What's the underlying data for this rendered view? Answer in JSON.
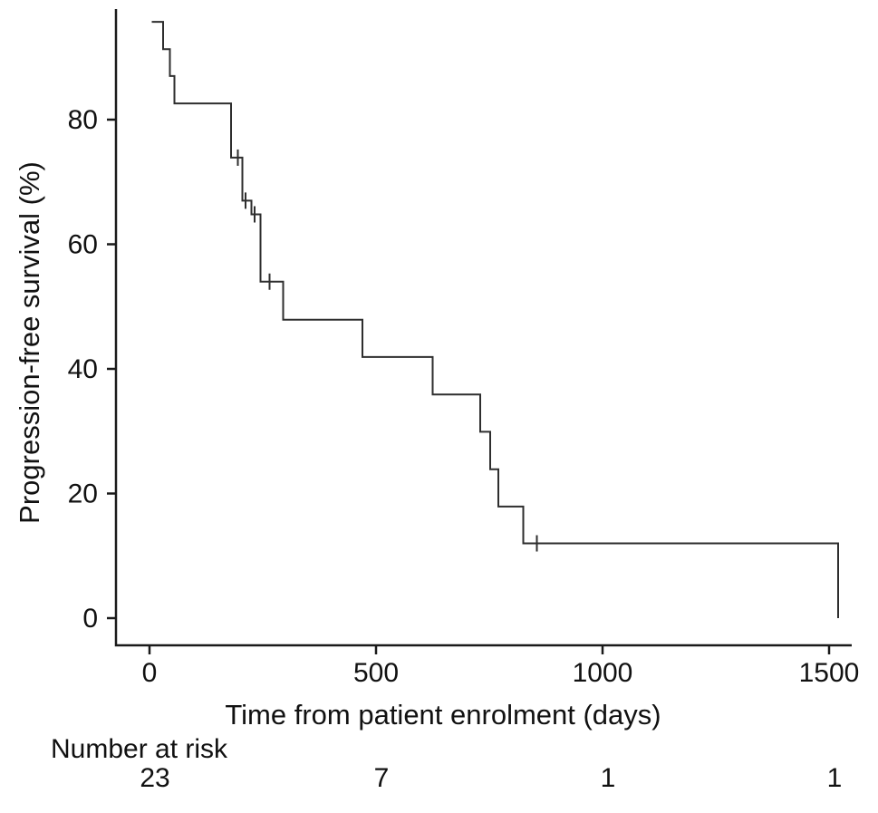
{
  "chart_data": {
    "type": "line",
    "subtype": "kaplan-meier-step-curve",
    "title": "",
    "xlabel": "Time from patient enrolment (days)",
    "ylabel": "Progression-free survival (%)",
    "xlim": [
      0,
      1560
    ],
    "ylim": [
      0,
      100
    ],
    "xticks": [
      0,
      500,
      1000,
      1500
    ],
    "yticks": [
      0,
      20,
      40,
      60,
      80
    ],
    "grid": false,
    "legend": "none",
    "line_color": "#2e2e2e",
    "axis_color": "#1a1a1a",
    "steps": [
      {
        "t": 5,
        "s": 95.7
      },
      {
        "t": 30,
        "s": 91.3
      },
      {
        "t": 45,
        "s": 87.0
      },
      {
        "t": 55,
        "s": 82.6
      },
      {
        "t": 180,
        "s": 73.9
      },
      {
        "t": 205,
        "s": 67.0
      },
      {
        "t": 225,
        "s": 64.8
      },
      {
        "t": 245,
        "s": 54.0
      },
      {
        "t": 295,
        "s": 47.9
      },
      {
        "t": 470,
        "s": 41.9
      },
      {
        "t": 625,
        "s": 35.9
      },
      {
        "t": 730,
        "s": 29.9
      },
      {
        "t": 752,
        "s": 23.9
      },
      {
        "t": 770,
        "s": 17.9
      },
      {
        "t": 825,
        "s": 12.0
      },
      {
        "t": 1520,
        "s": 0
      }
    ],
    "censor_marks": [
      {
        "t": 195,
        "s": 73.9
      },
      {
        "t": 212,
        "s": 67.0
      },
      {
        "t": 232,
        "s": 64.8
      },
      {
        "t": 265,
        "s": 54.0
      },
      {
        "t": 855,
        "s": 12.0
      }
    ],
    "number_at_risk": {
      "label": "Number at risk",
      "times": [
        0,
        500,
        1000,
        1500
      ],
      "values": [
        23,
        7,
        1,
        1
      ]
    }
  }
}
